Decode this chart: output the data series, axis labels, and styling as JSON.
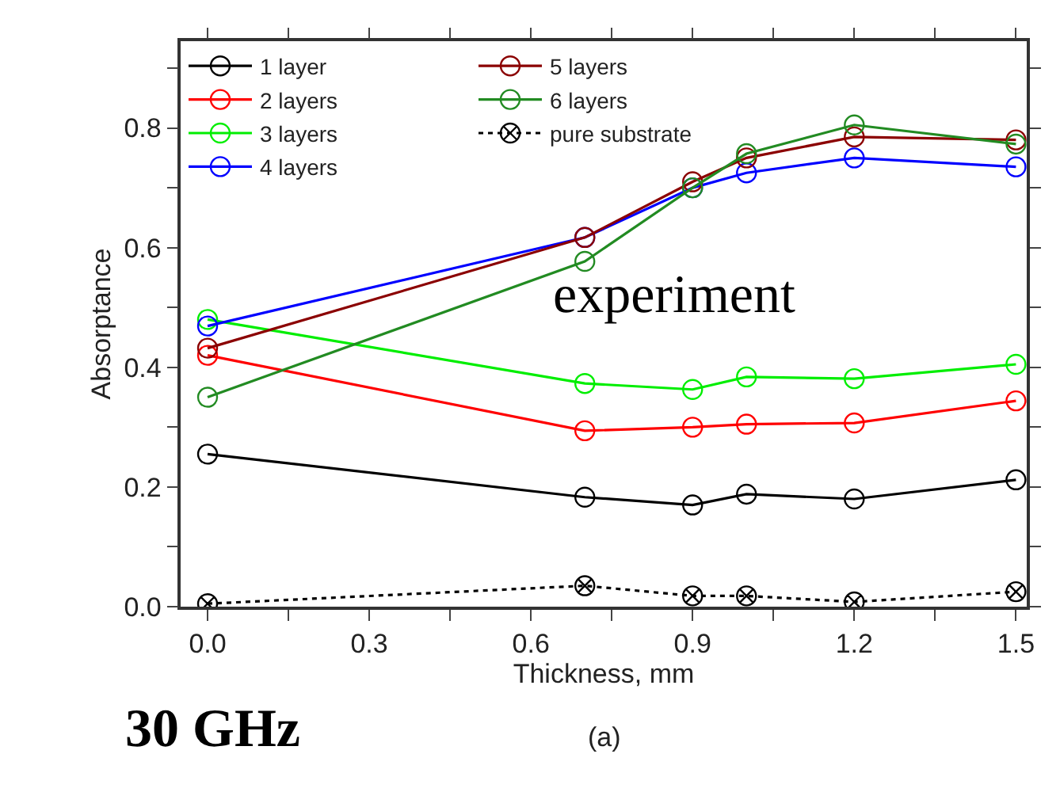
{
  "chart_data": {
    "type": "line",
    "xlabel": "Thickness, mm",
    "ylabel": "Absorptance",
    "x": [
      0,
      0.7,
      0.9,
      1.0,
      1.2,
      1.5
    ],
    "series": [
      {
        "name": "1 layer",
        "color": "#000000",
        "values": [
          0.255,
          0.183,
          0.17,
          0.188,
          0.18,
          0.212
        ]
      },
      {
        "name": "2 layers",
        "color": "#ff0000",
        "values": [
          0.42,
          0.294,
          0.3,
          0.305,
          0.307,
          0.344
        ]
      },
      {
        "name": "3 layers",
        "color": "#00ee00",
        "values": [
          0.48,
          0.373,
          0.363,
          0.384,
          0.381,
          0.405
        ]
      },
      {
        "name": "4 layers",
        "color": "#0000ff",
        "values": [
          0.469,
          0.617,
          0.7,
          0.725,
          0.75,
          0.735
        ]
      },
      {
        "name": "5 layers",
        "color": "#8b0000",
        "values": [
          0.432,
          0.617,
          0.71,
          0.75,
          0.785,
          0.78
        ]
      },
      {
        "name": "6 layers",
        "color": "#228b22",
        "values": [
          0.35,
          0.577,
          0.7,
          0.757,
          0.805,
          0.773
        ]
      },
      {
        "name": "pure substrate",
        "color": "#000000",
        "values": [
          0.005,
          0.035,
          0.018,
          0.018,
          0.008,
          0.025
        ],
        "marker": "cross",
        "line_style": "dotted"
      }
    ],
    "marker": "circle",
    "line_style": "solid",
    "legend": "top left",
    "xlim": [
      -0.05,
      1.52
    ],
    "xticks": [
      {
        "value": 0,
        "label": "0.0"
      },
      {
        "value": 0.15,
        "label": null
      },
      0.3,
      {
        "value": 0.45,
        "label": null
      },
      0.6,
      {
        "value": 0.75,
        "label": null
      },
      0.9,
      {
        "value": 1.05,
        "label": null
      },
      1.2,
      {
        "value": 1.35,
        "label": null
      },
      1.5
    ],
    "ylim": [
      0,
      0.945
    ],
    "yticks": [
      {
        "value": 0,
        "label": "0.0"
      },
      {
        "value": 0.1,
        "label": null
      },
      0.2,
      {
        "value": 0.3,
        "label": null
      },
      0.4,
      {
        "value": 0.5,
        "label": null
      },
      0.6,
      {
        "value": 0.7,
        "label": null
      },
      0.8,
      {
        "value": 0.9,
        "label": null
      }
    ],
    "annotations": [
      "experiment",
      "30 GHz",
      "(a)"
    ]
  }
}
